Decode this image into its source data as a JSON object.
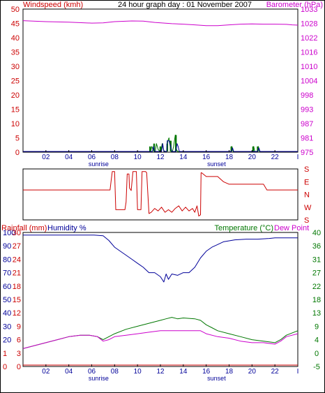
{
  "title": "24 hour graph day : 01 November 2007",
  "colors": {
    "wind": "#cc0000",
    "baro": "#cc00cc",
    "green": "#007700",
    "blue": "#000099",
    "dir": "#cc0000",
    "rain": "#cc0000",
    "humidity": "#000099",
    "temp": "#007700",
    "dew": "#cc00cc",
    "hour_label": "#000099"
  },
  "hour_axis": {
    "ticks": [
      "02",
      "04",
      "06",
      "08",
      "10",
      "12",
      "14",
      "16",
      "18",
      "20",
      "22"
    ],
    "end_tick": "I",
    "sunrise_label": "sunrise",
    "sunrise_hour": 6.6,
    "sunset_label": "sunset",
    "sunset_hour": 16.9
  },
  "chart_data": [
    {
      "type": "line",
      "name": "wind-baro",
      "x_range": [
        0,
        24
      ],
      "left_axis": {
        "title": "Windspeed (kmh)",
        "ticks": [
          "50",
          "45",
          "40",
          "35",
          "30",
          "25",
          "20",
          "15",
          "10",
          "5",
          "0"
        ],
        "range": [
          0,
          50
        ]
      },
      "right_axis": {
        "title": "Barometer (hPa)",
        "ticks": [
          "1033",
          "1028",
          "1022",
          "1016",
          "1010",
          "1004",
          "998",
          "993",
          "987",
          "981",
          "975"
        ],
        "range": [
          975,
          1033
        ]
      },
      "series": [
        {
          "name": "Barometer",
          "axis": "right",
          "color": "baro",
          "points": [
            [
              0,
              1028.3
            ],
            [
              2,
              1027.9
            ],
            [
              4,
              1027.7
            ],
            [
              6,
              1027.3
            ],
            [
              7,
              1027.4
            ],
            [
              8,
              1027.9
            ],
            [
              9.5,
              1028.2
            ],
            [
              10.5,
              1028.1
            ],
            [
              11.5,
              1027.6
            ],
            [
              13,
              1027.1
            ],
            [
              14,
              1026.9
            ],
            [
              15,
              1026.6
            ],
            [
              16,
              1026.3
            ],
            [
              17,
              1026.3
            ],
            [
              18,
              1026.6
            ],
            [
              19,
              1026.9
            ],
            [
              20,
              1027
            ],
            [
              21,
              1026.9
            ],
            [
              22,
              1026.9
            ],
            [
              23,
              1026.8
            ],
            [
              23.5,
              1026.6
            ],
            [
              24,
              1026.5
            ]
          ]
        },
        {
          "name": "Windspeed",
          "axis": "left",
          "color": "green",
          "points": [
            [
              0,
              0
            ],
            [
              11.15,
              0
            ],
            [
              11.25,
              2
            ],
            [
              11.35,
              1
            ],
            [
              11.45,
              0
            ],
            [
              11.55,
              0
            ],
            [
              11.65,
              3
            ],
            [
              11.8,
              1
            ],
            [
              11.95,
              0
            ],
            [
              12.05,
              0
            ],
            [
              12.15,
              3
            ],
            [
              12.3,
              0.5
            ],
            [
              12.45,
              0
            ],
            [
              12.55,
              0
            ],
            [
              12.65,
              4
            ],
            [
              12.75,
              5
            ],
            [
              12.85,
              2
            ],
            [
              12.95,
              0
            ],
            [
              13.05,
              0
            ],
            [
              13.15,
              2
            ],
            [
              13.3,
              6
            ],
            [
              13.4,
              1
            ],
            [
              13.5,
              0
            ],
            [
              18.15,
              0
            ],
            [
              18.25,
              2
            ],
            [
              18.35,
              0
            ],
            [
              20.05,
              0
            ],
            [
              20.15,
              2
            ],
            [
              20.25,
              0
            ],
            [
              20.45,
              0
            ],
            [
              20.55,
              2
            ],
            [
              20.65,
              0
            ],
            [
              24,
              0
            ]
          ]
        },
        {
          "name": "Gust",
          "axis": "left",
          "color": "blue",
          "points": [
            [
              0,
              0
            ],
            [
              11.3,
              0
            ],
            [
              11.4,
              2
            ],
            [
              11.5,
              0
            ],
            [
              12.1,
              0
            ],
            [
              12.2,
              3
            ],
            [
              12.3,
              0
            ],
            [
              12.55,
              0
            ],
            [
              12.6,
              4
            ],
            [
              12.75,
              4
            ],
            [
              12.9,
              2
            ],
            [
              13.0,
              0
            ],
            [
              13.35,
              0
            ],
            [
              13.45,
              3
            ],
            [
              13.55,
              2
            ],
            [
              13.65,
              0
            ],
            [
              18.2,
              0
            ],
            [
              18.3,
              1.5
            ],
            [
              18.4,
              0
            ],
            [
              20.5,
              0
            ],
            [
              20.6,
              1.5
            ],
            [
              20.7,
              0
            ],
            [
              24,
              0
            ]
          ]
        }
      ],
      "bars": [
        {
          "x": 11.1,
          "value": 2,
          "color": "green"
        },
        {
          "x": 11.45,
          "value": 3,
          "color": "green"
        },
        {
          "x": 12.0,
          "value": 2,
          "color": "green"
        },
        {
          "x": 12.6,
          "value": 3,
          "color": "green"
        },
        {
          "x": 12.9,
          "value": 4,
          "color": "green"
        },
        {
          "x": 13.35,
          "value": 6,
          "color": "green"
        },
        {
          "x": 18.2,
          "value": 2,
          "color": "green"
        },
        {
          "x": 20.1,
          "value": 2,
          "color": "green"
        },
        {
          "x": 20.5,
          "value": 2,
          "color": "green"
        }
      ]
    },
    {
      "type": "line",
      "name": "wind-direction",
      "x_range": [
        0,
        24
      ],
      "right_axis": {
        "ticks": [
          "S",
          "E",
          "N",
          "W",
          "S"
        ],
        "range": [
          0,
          4
        ],
        "direction": "down"
      },
      "series": [
        {
          "name": "Wind direction",
          "color": "dir",
          "points": [
            [
              0,
              1.65
            ],
            [
              7.6,
              1.65
            ],
            [
              7.7,
              0.9
            ],
            [
              7.8,
              0.2
            ],
            [
              8.0,
              0.2
            ],
            [
              8.1,
              3.2
            ],
            [
              8.9,
              3.2
            ],
            [
              9.0,
              2.6
            ],
            [
              9.1,
              0.4
            ],
            [
              9.25,
              0.4
            ],
            [
              9.3,
              1.5
            ],
            [
              9.45,
              1.7
            ],
            [
              9.6,
              0.2
            ],
            [
              9.9,
              0.2
            ],
            [
              10.0,
              3.2
            ],
            [
              10.3,
              3.2
            ],
            [
              10.4,
              0.2
            ],
            [
              10.7,
              0.2
            ],
            [
              10.8,
              0.3
            ],
            [
              11.0,
              3.5
            ],
            [
              11.2,
              3.4
            ],
            [
              11.5,
              3.1
            ],
            [
              11.8,
              3.3
            ],
            [
              12.1,
              3.0
            ],
            [
              12.4,
              3.4
            ],
            [
              12.7,
              3.2
            ],
            [
              13.0,
              3.4
            ],
            [
              13.3,
              3.1
            ],
            [
              13.6,
              2.9
            ],
            [
              13.9,
              3.3
            ],
            [
              14.2,
              3.0
            ],
            [
              14.5,
              3.3
            ],
            [
              14.8,
              3.1
            ],
            [
              15.0,
              3.4
            ],
            [
              15.2,
              2.9
            ],
            [
              15.35,
              3.7
            ],
            [
              15.5,
              3.6
            ],
            [
              15.55,
              0.3
            ],
            [
              15.6,
              0.3
            ],
            [
              16.0,
              0.6
            ],
            [
              17.0,
              0.6
            ],
            [
              17.5,
              1.0
            ],
            [
              18.0,
              1.2
            ],
            [
              19.0,
              1.2
            ],
            [
              21.0,
              1.2
            ],
            [
              21.3,
              1.65
            ],
            [
              24,
              1.65
            ]
          ]
        }
      ]
    },
    {
      "type": "line",
      "name": "rain-humidity-temp",
      "x_range": [
        0,
        24
      ],
      "left_axis": {
        "title": "Rainfall (mm)",
        "ticks": [
          "10",
          "9",
          "8",
          "7",
          "6",
          "5",
          "4",
          "3",
          "2",
          "1",
          "0"
        ],
        "range": [
          0,
          10
        ]
      },
      "left_axis_2": {
        "title": "Humidity %",
        "ticks": [
          "100",
          "90",
          "80",
          "70",
          "60",
          "50",
          "40",
          "30",
          "20",
          "10",
          "0"
        ],
        "range": [
          0,
          100
        ]
      },
      "left_axis_3": {
        "ticks": [
          "30",
          "27",
          "24",
          "21",
          "18",
          "15",
          "12",
          "9",
          "6",
          "3",
          "0"
        ],
        "range": [
          0,
          30
        ]
      },
      "right_axis": {
        "title": "Temperature (°C)",
        "title_2": "Dew Point",
        "ticks": [
          "40",
          "36",
          "31",
          "27",
          "22",
          "18",
          "13",
          "9",
          "4",
          "0",
          "-5"
        ],
        "range": [
          -5,
          40
        ]
      },
      "series": [
        {
          "name": "Humidity",
          "axis": "left_2",
          "color": "humidity",
          "points": [
            [
              0,
              98
            ],
            [
              6.2,
              98
            ],
            [
              7.0,
              97.5
            ],
            [
              7.5,
              94
            ],
            [
              8.0,
              89
            ],
            [
              8.5,
              86
            ],
            [
              9.0,
              83
            ],
            [
              9.5,
              80
            ],
            [
              10.0,
              77
            ],
            [
              10.5,
              74
            ],
            [
              11.0,
              70
            ],
            [
              11.5,
              70
            ],
            [
              12.0,
              67
            ],
            [
              12.3,
              63
            ],
            [
              12.5,
              69
            ],
            [
              12.7,
              65
            ],
            [
              13.0,
              69
            ],
            [
              13.5,
              68
            ],
            [
              14.0,
              70
            ],
            [
              14.5,
              70
            ],
            [
              15.0,
              74
            ],
            [
              15.5,
              81
            ],
            [
              16.0,
              86
            ],
            [
              16.5,
              89
            ],
            [
              17.0,
              91
            ],
            [
              17.5,
              93
            ],
            [
              18.5,
              94.5
            ],
            [
              19.5,
              95
            ],
            [
              20.5,
              95
            ],
            [
              21.5,
              95.5
            ],
            [
              22.0,
              96
            ],
            [
              23.0,
              96
            ],
            [
              23.5,
              96
            ],
            [
              24,
              96
            ]
          ]
        },
        {
          "name": "Temperature",
          "axis": "right",
          "color": "temp",
          "points": [
            [
              0,
              1
            ],
            [
              1,
              2
            ],
            [
              2,
              3
            ],
            [
              3,
              4
            ],
            [
              4,
              5
            ],
            [
              5,
              5.5
            ],
            [
              5.8,
              5.5
            ],
            [
              6.5,
              5
            ],
            [
              7,
              4
            ],
            [
              7.5,
              5
            ],
            [
              8,
              6
            ],
            [
              9,
              7.5
            ],
            [
              10,
              8.5
            ],
            [
              11,
              9.5
            ],
            [
              11.5,
              10
            ],
            [
              12,
              10.5
            ],
            [
              12.5,
              11
            ],
            [
              13,
              11.5
            ],
            [
              13.5,
              11
            ],
            [
              14,
              11.3
            ],
            [
              15,
              11
            ],
            [
              15.5,
              10.5
            ],
            [
              16,
              9
            ],
            [
              16.5,
              8
            ],
            [
              17,
              7
            ],
            [
              18,
              6
            ],
            [
              19,
              5
            ],
            [
              20,
              4
            ],
            [
              21,
              3.5
            ],
            [
              22,
              3
            ],
            [
              22.5,
              4
            ],
            [
              23,
              5.5
            ],
            [
              24,
              7
            ]
          ]
        },
        {
          "name": "Dew Point",
          "axis": "right",
          "color": "dew",
          "points": [
            [
              0,
              1
            ],
            [
              1,
              2
            ],
            [
              2,
              3
            ],
            [
              3,
              4
            ],
            [
              4,
              5
            ],
            [
              5,
              5.5
            ],
            [
              5.8,
              5.5
            ],
            [
              6.5,
              5
            ],
            [
              7,
              3.5
            ],
            [
              7.5,
              4
            ],
            [
              8,
              5
            ],
            [
              9,
              5.5
            ],
            [
              10,
              6
            ],
            [
              11,
              6.5
            ],
            [
              12,
              7
            ],
            [
              13,
              7
            ],
            [
              14,
              7
            ],
            [
              15,
              7
            ],
            [
              15.5,
              7
            ],
            [
              16,
              6
            ],
            [
              17,
              5
            ],
            [
              18,
              4.5
            ],
            [
              19,
              3.5
            ],
            [
              20,
              3
            ],
            [
              21,
              3
            ],
            [
              22,
              2.5
            ],
            [
              22.5,
              3.5
            ],
            [
              23,
              5
            ],
            [
              24,
              6
            ]
          ]
        },
        {
          "name": "Rainfall",
          "axis": "left",
          "color": "rain",
          "points": [
            [
              0,
              0
            ],
            [
              24,
              0
            ]
          ]
        }
      ]
    }
  ]
}
